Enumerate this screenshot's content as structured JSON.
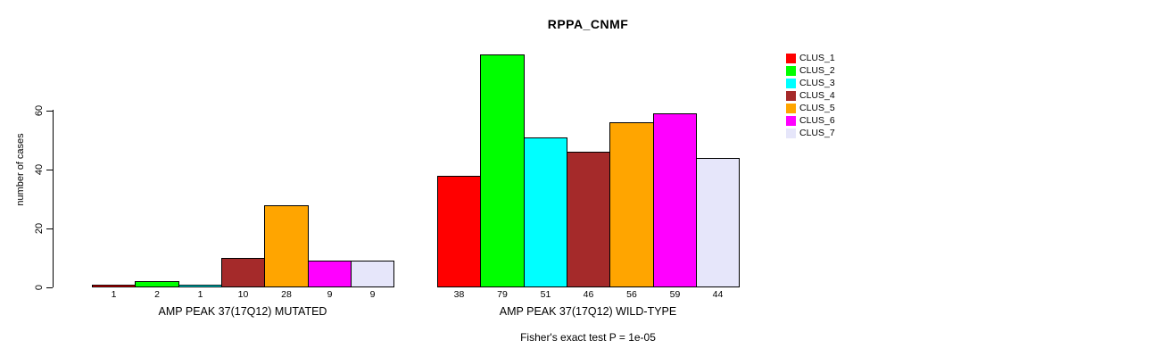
{
  "chart_data": {
    "type": "bar",
    "title": "RPPA_CNMF",
    "ylabel": "number of cases",
    "ylim": [
      0,
      60
    ],
    "yticks": [
      0,
      20,
      40,
      60
    ],
    "grid": false,
    "legend_position": "right",
    "bar_border_color": "#000000",
    "groups": [
      {
        "label": "AMP PEAK 37(17Q12) MUTATED",
        "values": [
          1,
          2,
          1,
          10,
          28,
          9,
          9
        ]
      },
      {
        "label": "AMP PEAK 37(17Q12) WILD-TYPE",
        "values": [
          38,
          79,
          51,
          46,
          56,
          59,
          44
        ]
      }
    ],
    "series": [
      {
        "name": "CLUS_1",
        "color": "#FF0000",
        "values": [
          1,
          38
        ]
      },
      {
        "name": "CLUS_2",
        "color": "#00FF00",
        "values": [
          2,
          79
        ]
      },
      {
        "name": "CLUS_3",
        "color": "#00FFFF",
        "values": [
          1,
          51
        ]
      },
      {
        "name": "CLUS_4",
        "color": "#A52A2A",
        "values": [
          10,
          46
        ]
      },
      {
        "name": "CLUS_5",
        "color": "#FFA500",
        "values": [
          28,
          56
        ]
      },
      {
        "name": "CLUS_6",
        "color": "#FF00FF",
        "values": [
          9,
          59
        ]
      },
      {
        "name": "CLUS_7",
        "color": "#E6E6FA",
        "values": [
          9,
          44
        ]
      }
    ],
    "footnote": "Fisher's exact test P = 1e-05"
  }
}
